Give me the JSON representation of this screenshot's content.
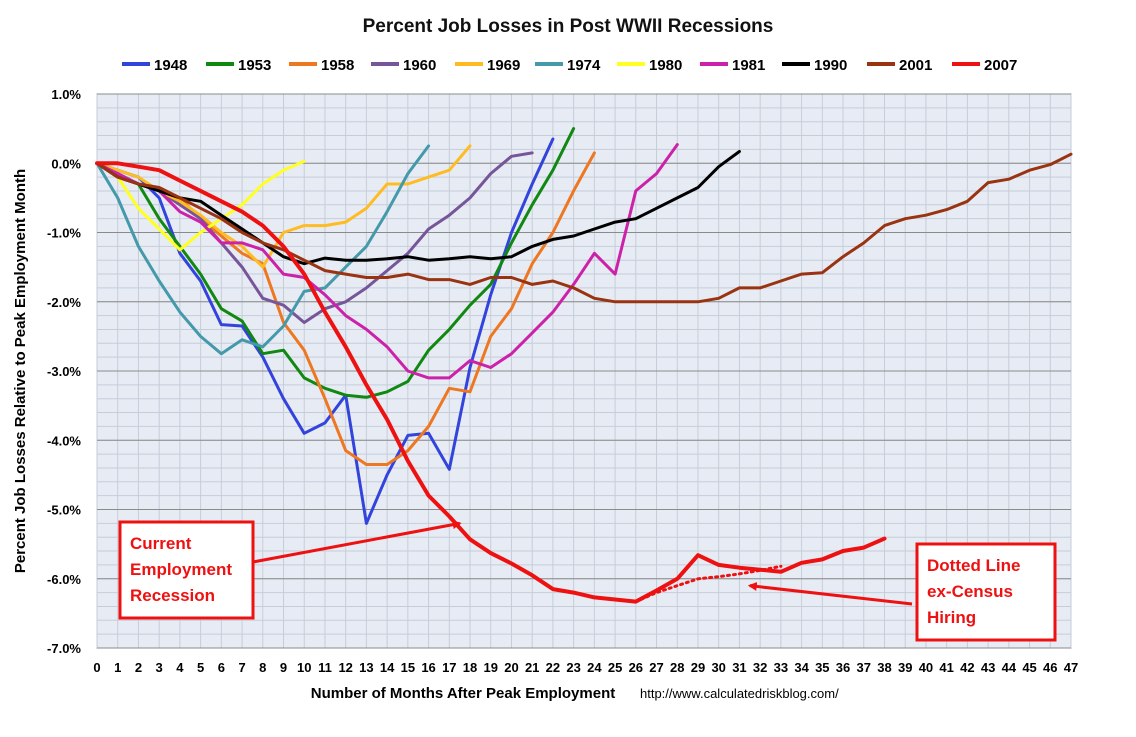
{
  "chart_data": {
    "type": "line",
    "title": "Percent Job Losses in Post WWII Recessions",
    "xlabel": "Number of Months After Peak Employment",
    "ylabel": "Percent Job Losses Relative to Peak Employment Month",
    "source": "http://www.calculatedriskblog.com/",
    "xlim": [
      0,
      47
    ],
    "ylim": [
      -7.0,
      1.0
    ],
    "x_ticks": [
      "0",
      "1",
      "2",
      "3",
      "4",
      "5",
      "6",
      "7",
      "8",
      "9",
      "10",
      "11",
      "12",
      "13",
      "14",
      "15",
      "16",
      "17",
      "18",
      "19",
      "20",
      "21",
      "22",
      "23",
      "24",
      "25",
      "26",
      "27",
      "28",
      "29",
      "30",
      "31",
      "32",
      "33",
      "34",
      "35",
      "36",
      "37",
      "38",
      "39",
      "40",
      "41",
      "42",
      "43",
      "44",
      "45",
      "46",
      "47"
    ],
    "y_ticks": [
      {
        "value": 1.0,
        "label": "1.0%"
      },
      {
        "value": 0.0,
        "label": "0.0%"
      },
      {
        "value": -1.0,
        "label": "-1.0%"
      },
      {
        "value": -2.0,
        "label": "-2.0%"
      },
      {
        "value": -3.0,
        "label": "-3.0%"
      },
      {
        "value": -4.0,
        "label": "-4.0%"
      },
      {
        "value": -5.0,
        "label": "-5.0%"
      },
      {
        "value": -6.0,
        "label": "-6.0%"
      },
      {
        "value": -7.0,
        "label": "-7.0%"
      }
    ],
    "grid": true,
    "legend_position": "top",
    "series": [
      {
        "name": "1948",
        "color": "#3344dd",
        "values": [
          0,
          -0.1,
          -0.2,
          -0.5,
          -1.3,
          -1.7,
          -2.33,
          -2.35,
          -2.8,
          -3.4,
          -3.9,
          -3.75,
          -3.35,
          -5.2,
          -4.5,
          -3.93,
          -3.9,
          -4.42,
          -2.95,
          -1.9,
          -1.0,
          -0.3,
          0.35
        ]
      },
      {
        "name": "1953",
        "color": "#118811",
        "values": [
          0,
          -0.15,
          -0.3,
          -0.8,
          -1.2,
          -1.6,
          -2.1,
          -2.28,
          -2.75,
          -2.7,
          -3.1,
          -3.25,
          -3.35,
          -3.38,
          -3.3,
          -3.15,
          -2.7,
          -2.4,
          -2.05,
          -1.75,
          -1.15,
          -0.6,
          -0.1,
          0.5
        ]
      },
      {
        "name": "1958",
        "color": "#ee7722",
        "values": [
          0,
          -0.2,
          -0.3,
          -0.4,
          -0.5,
          -0.8,
          -1.05,
          -1.3,
          -1.45,
          -2.3,
          -2.7,
          -3.4,
          -4.15,
          -4.35,
          -4.35,
          -4.15,
          -3.8,
          -3.25,
          -3.3,
          -2.5,
          -2.1,
          -1.45,
          -1.0,
          -0.4,
          0.15
        ]
      },
      {
        "name": "1960",
        "color": "#775599",
        "values": [
          0,
          -0.15,
          -0.3,
          -0.4,
          -0.6,
          -0.8,
          -1.15,
          -1.5,
          -1.95,
          -2.05,
          -2.3,
          -2.1,
          -2.0,
          -1.8,
          -1.55,
          -1.3,
          -0.95,
          -0.75,
          -0.5,
          -0.15,
          0.1,
          0.15
        ]
      },
      {
        "name": "1969",
        "color": "#ffbb22",
        "values": [
          0,
          -0.1,
          -0.2,
          -0.4,
          -0.55,
          -0.75,
          -1.0,
          -1.2,
          -1.5,
          -1.0,
          -0.9,
          -0.9,
          -0.85,
          -0.65,
          -0.3,
          -0.3,
          -0.2,
          -0.1,
          0.25
        ]
      },
      {
        "name": "1974",
        "color": "#4499aa",
        "values": [
          0,
          -0.5,
          -1.2,
          -1.7,
          -2.15,
          -2.5,
          -2.75,
          -2.55,
          -2.65,
          -2.35,
          -1.85,
          -1.8,
          -1.5,
          -1.2,
          -0.7,
          -0.15,
          0.25
        ]
      },
      {
        "name": "1980",
        "color": "#ffff22",
        "values": [
          0,
          -0.2,
          -0.65,
          -0.95,
          -1.25,
          -1.0,
          -0.8,
          -0.6,
          -0.3,
          -0.1,
          0.03
        ]
      },
      {
        "name": "1981",
        "color": "#cc22aa",
        "values": [
          0,
          -0.15,
          -0.3,
          -0.4,
          -0.7,
          -0.85,
          -1.15,
          -1.15,
          -1.25,
          -1.6,
          -1.65,
          -1.9,
          -2.2,
          -2.4,
          -2.65,
          -3.0,
          -3.1,
          -3.1,
          -2.85,
          -2.95,
          -2.75,
          -2.45,
          -2.15,
          -1.75,
          -1.3,
          -1.6,
          -0.4,
          -0.15,
          0.27
        ]
      },
      {
        "name": "1990",
        "color": "#000000",
        "values": [
          0,
          -0.2,
          -0.3,
          -0.4,
          -0.5,
          -0.55,
          -0.75,
          -0.95,
          -1.15,
          -1.35,
          -1.45,
          -1.37,
          -1.4,
          -1.4,
          -1.38,
          -1.35,
          -1.4,
          -1.38,
          -1.35,
          -1.38,
          -1.35,
          -1.2,
          -1.1,
          -1.05,
          -0.95,
          -0.85,
          -0.8,
          -0.65,
          -0.5,
          -0.35,
          -0.05,
          0.17
        ]
      },
      {
        "name": "2001",
        "color": "#993311",
        "values": [
          0,
          -0.2,
          -0.3,
          -0.35,
          -0.5,
          -0.65,
          -0.8,
          -1.0,
          -1.15,
          -1.25,
          -1.4,
          -1.55,
          -1.6,
          -1.65,
          -1.65,
          -1.6,
          -1.68,
          -1.68,
          -1.75,
          -1.65,
          -1.65,
          -1.75,
          -1.7,
          -1.8,
          -1.95,
          -2.0,
          -2.0,
          -2.0,
          -2.0,
          -2.0,
          -1.95,
          -1.8,
          -1.8,
          -1.7,
          -1.6,
          -1.58,
          -1.35,
          -1.15,
          -0.9,
          -0.8,
          -0.75,
          -0.67,
          -0.55,
          -0.28,
          -0.23,
          -0.1,
          -0.02,
          0.13
        ]
      },
      {
        "name": "2007",
        "color": "#ee1111",
        "values": [
          0,
          0,
          -0.05,
          -0.1,
          -0.25,
          -0.4,
          -0.55,
          -0.7,
          -0.9,
          -1.2,
          -1.6,
          -2.15,
          -2.65,
          -3.2,
          -3.7,
          -4.3,
          -4.8,
          -5.1,
          -5.43,
          -5.63,
          -5.78,
          -5.95,
          -6.15,
          -6.2,
          -6.27,
          -6.3,
          -6.33,
          -6.17,
          -6.0,
          -5.66,
          -5.8,
          -5.84,
          -5.87,
          -5.9,
          -5.77,
          -5.72,
          -5.6,
          -5.55,
          -5.42
        ]
      }
    ],
    "dotted_series": {
      "name": "2007 ex-Census",
      "color": "#ee1111",
      "x": [
        26,
        27,
        28,
        29,
        30,
        31,
        32,
        33
      ],
      "values": [
        -6.33,
        -6.2,
        -6.1,
        -6.0,
        -5.97,
        -5.93,
        -5.88,
        -5.82
      ]
    },
    "annotations": [
      {
        "lines": [
          "Current",
          "Employment",
          "Recession"
        ],
        "arrow_to": {
          "x": 17.5,
          "y": -5.2
        }
      },
      {
        "lines": [
          "Dotted  Line",
          "ex-Census",
          "Hiring"
        ],
        "arrow_to": {
          "x": 31.5,
          "y": -6.1
        }
      }
    ]
  }
}
